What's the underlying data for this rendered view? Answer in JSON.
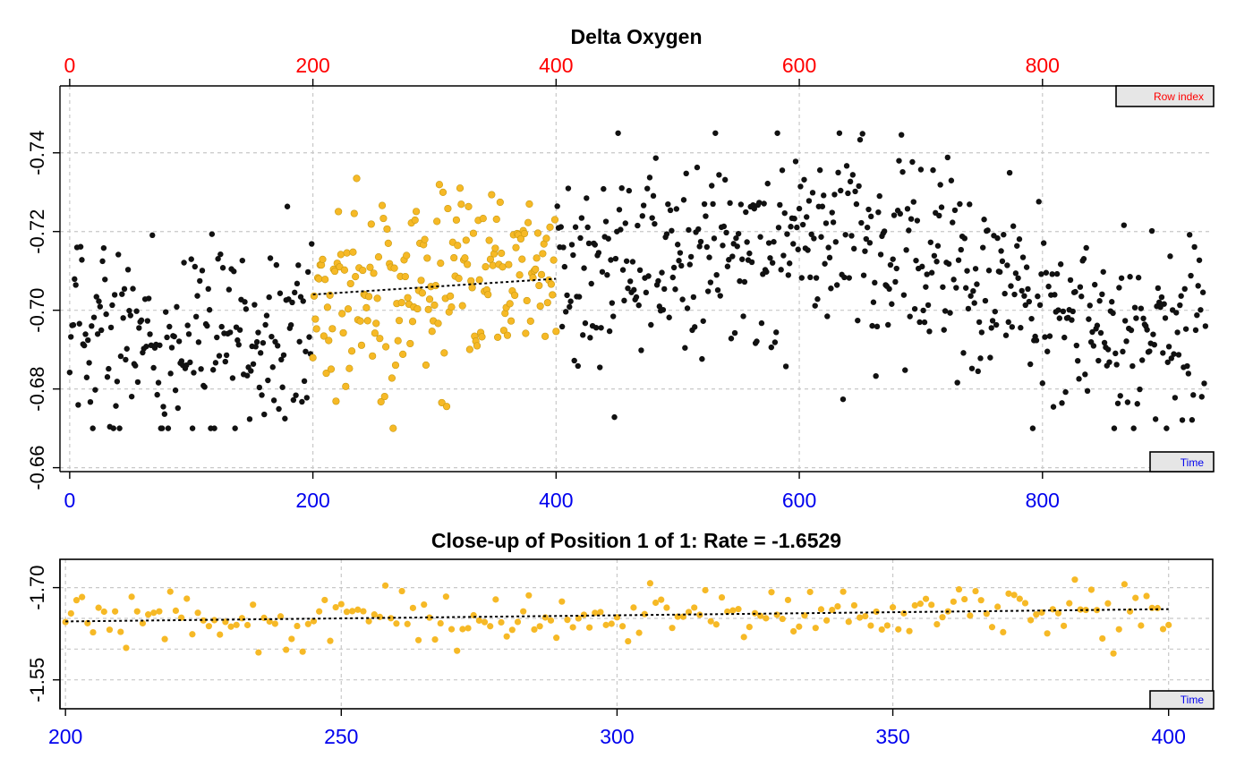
{
  "colors": {
    "background_points": "#111111",
    "subset_points": "#F6B926",
    "subset_point_stroke": "#C99A10",
    "top_axis": "#FF0000",
    "bottom_axis": "#0000EE",
    "trend_line": "#000000"
  },
  "chart_data": [
    {
      "type": "scatter",
      "title": "Delta Oxygen",
      "xlabel": "",
      "ylabel": "",
      "x": "Time",
      "y": "Delta Oxygen",
      "xlim": [
        -8,
        940
      ],
      "ylim": [
        -0.659,
        -0.757
      ],
      "y_reversed": true,
      "x_ticks": [
        0,
        200,
        400,
        600,
        800
      ],
      "y_ticks": [
        -0.66,
        -0.68,
        -0.7,
        -0.72,
        -0.74
      ],
      "y_tick_labels": [
        "-0.66",
        "-0.68",
        "-0.70",
        "-0.72",
        "-0.74"
      ],
      "top_axis": {
        "label": "Row index",
        "ticks": [
          0,
          200,
          400,
          600,
          800
        ],
        "color": "#FF0000"
      },
      "bottom_axis": {
        "label": "Time",
        "ticks": [
          0,
          200,
          400,
          600,
          800
        ],
        "color": "#0000EE"
      },
      "grid": true,
      "series": [
        {
          "color": "#111111",
          "x_range": [
            0,
            934
          ],
          "n_points": 935
        },
        {
          "color": "#F6B926",
          "x_range": [
            200,
            400
          ],
          "highlighted_subset": true
        }
      ],
      "trend_line": {
        "x": [
          200,
          400
        ],
        "y": [
          -0.704,
          -0.708
        ]
      }
    },
    {
      "type": "scatter",
      "title": "Close-up of Position 1 of 1: Rate =  -1.6529",
      "xlabel": "",
      "ylabel": "",
      "x": "Time",
      "xlim": [
        199,
        408
      ],
      "ylim": [
        -1.503,
        -1.746
      ],
      "y_reversed": true,
      "x_ticks": [
        200,
        250,
        300,
        350,
        400
      ],
      "y_ticks": [
        -1.55,
        -1.7
      ],
      "y_tick_labels": [
        "-1.55",
        "-1.70"
      ],
      "bottom_axis": {
        "label": "Time",
        "ticks": [
          200,
          250,
          300,
          350,
          400
        ],
        "color": "#0000EE"
      },
      "grid": true,
      "series": [
        {
          "color": "#F6B926",
          "x_range": [
            200,
            400
          ],
          "n_points": 201
        }
      ],
      "rate": -1.6529,
      "trend_line": {
        "x": [
          200,
          400
        ],
        "y": [
          -1.645,
          -1.665
        ]
      }
    }
  ]
}
